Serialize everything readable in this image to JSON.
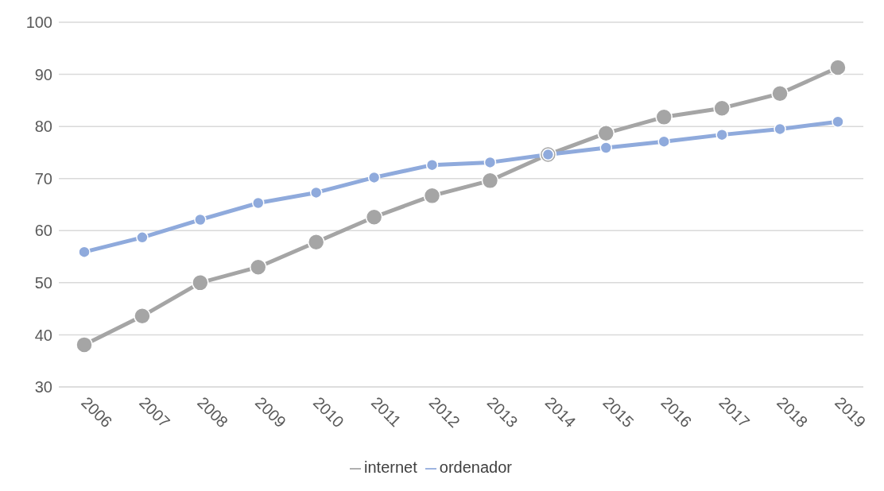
{
  "chart_data": {
    "type": "line",
    "categories": [
      "2006",
      "2007",
      "2008",
      "2009",
      "2010",
      "2011",
      "2012",
      "2013",
      "2014",
      "2015",
      "2016",
      "2017",
      "2018",
      "2019"
    ],
    "series": [
      {
        "name": "internet",
        "color": "#a5a5a5",
        "values": [
          38.1,
          43.6,
          50,
          53,
          57.8,
          62.6,
          66.7,
          69.6,
          74.6,
          78.7,
          81.8,
          83.5,
          86.3,
          91.3
        ]
      },
      {
        "name": "ordenador",
        "color": "#8faadc",
        "values": [
          55.9,
          58.7,
          62.1,
          65.3,
          67.3,
          70.2,
          72.6,
          73.1,
          74.6,
          75.9,
          77.1,
          78.4,
          79.5,
          80.9
        ]
      }
    ],
    "ylim": [
      30,
      100
    ],
    "yticks": [
      30,
      40,
      50,
      60,
      70,
      80,
      90,
      100
    ],
    "grid": "y",
    "legend": "bottom",
    "marker": "circle",
    "line_style": "solid"
  }
}
